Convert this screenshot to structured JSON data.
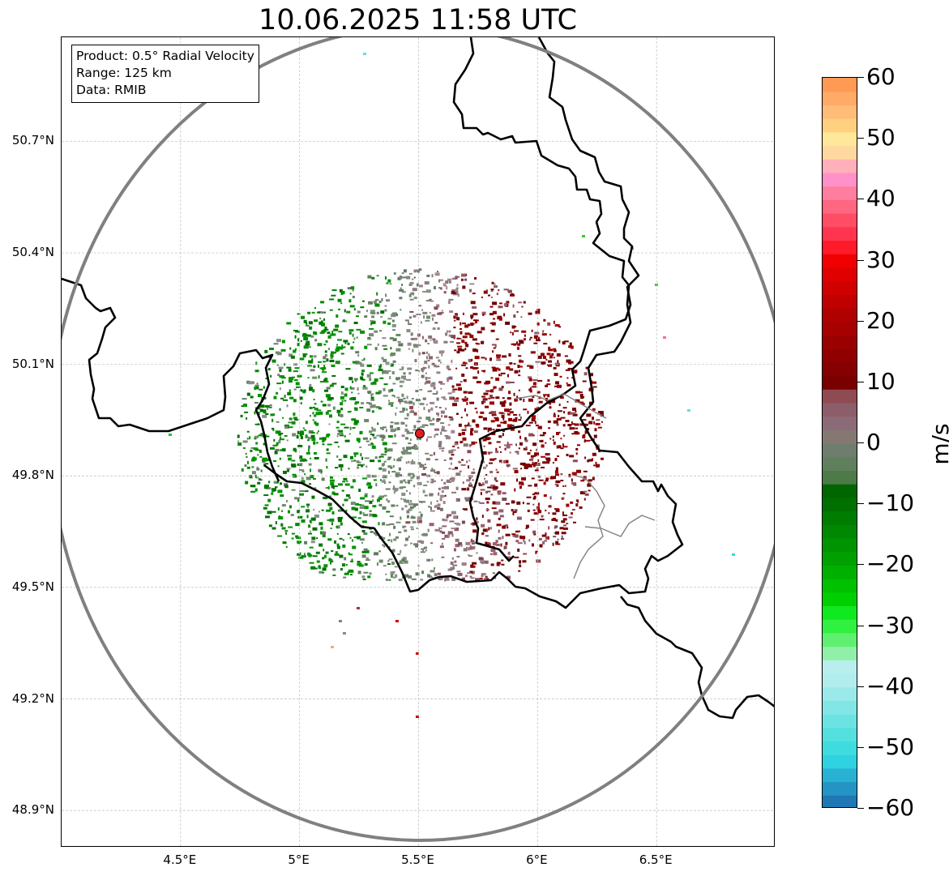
{
  "title": "10.06.2025 11:58 UTC",
  "info_box": {
    "product": "Product: 0.5° Radial Velocity",
    "range": "Range: 125 km",
    "data": "Data: RMIB"
  },
  "map": {
    "extent": {
      "lon_min": 4.0,
      "lon_max": 7.0,
      "lat_min": 48.8,
      "lat_max": 50.98
    },
    "radar_site": {
      "lon": 5.505,
      "lat": 49.914,
      "marker_color": "#e02020"
    },
    "range_ring_color": "#808080",
    "border_color": "#000000",
    "internal_border_color": "#808080",
    "grid_color": "#bdbdbd",
    "lat_ticks": [
      {
        "value": 50.7,
        "label": "50.7°N"
      },
      {
        "value": 50.4,
        "label": "50.4°N"
      },
      {
        "value": 50.1,
        "label": "50.1°N"
      },
      {
        "value": 49.8,
        "label": "49.8°N"
      },
      {
        "value": 49.5,
        "label": "49.5°N"
      },
      {
        "value": 49.2,
        "label": "49.2°N"
      },
      {
        "value": 48.9,
        "label": "48.9°N"
      }
    ],
    "lon_ticks": [
      {
        "value": 4.5,
        "label": "4.5°E"
      },
      {
        "value": 5.0,
        "label": "5°E"
      },
      {
        "value": 5.5,
        "label": "5.5°E"
      },
      {
        "value": 6.0,
        "label": "6°E"
      },
      {
        "value": 6.5,
        "label": "6.5°E"
      }
    ]
  },
  "colorbar": {
    "unit": "m/s",
    "min": -60,
    "max": 60,
    "ticks": [
      {
        "value": 60,
        "label": "60"
      },
      {
        "value": 50,
        "label": "50"
      },
      {
        "value": 40,
        "label": "40"
      },
      {
        "value": 30,
        "label": "30"
      },
      {
        "value": 20,
        "label": "20"
      },
      {
        "value": 10,
        "label": "10"
      },
      {
        "value": 0,
        "label": "0"
      },
      {
        "value": -10,
        "label": "−10"
      },
      {
        "value": -20,
        "label": "−20"
      },
      {
        "value": -30,
        "label": "−30"
      },
      {
        "value": -40,
        "label": "−40"
      },
      {
        "value": -50,
        "label": "−50"
      },
      {
        "value": -60,
        "label": "−60"
      }
    ],
    "colors": [
      "#1f77b4",
      "#2394c4",
      "#28b1d3",
      "#2ed2e0",
      "#3fdcdf",
      "#55e0e0",
      "#6ce3e3",
      "#83e6e6",
      "#9aeaea",
      "#b1eded",
      "#b8efee",
      "#90f0a8",
      "#60f070",
      "#30f040",
      "#10e820",
      "#00d000",
      "#00c000",
      "#00b000",
      "#00a000",
      "#009400",
      "#008800",
      "#007c00",
      "#007000",
      "#006600",
      "#4d7a48",
      "#5f7f5d",
      "#6e7d6d",
      "#857873",
      "#8a6b77",
      "#8b5e6a",
      "#8e4b52",
      "#7a0000",
      "#850000",
      "#900000",
      "#9b0000",
      "#a60000",
      "#b10000",
      "#c00000",
      "#d00000",
      "#e00000",
      "#f00000",
      "#ff1a2a",
      "#ff3550",
      "#ff4d66",
      "#ff6680",
      "#ff7ea0",
      "#ff90c8",
      "#ffb0b8",
      "#ffd8a0",
      "#ffe89a",
      "#ffd080",
      "#ffbc78",
      "#ffaa66",
      "#ff9a55"
    ]
  }
}
